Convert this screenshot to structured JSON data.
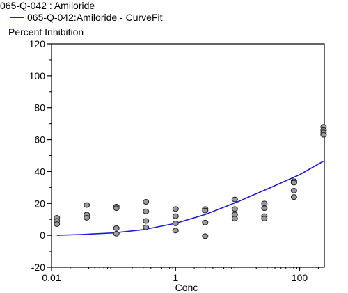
{
  "legend": {
    "title": "065-Q-042  : Amiloride",
    "fit_label": "065-Q-042:Amiloride - CurveFit"
  },
  "colors": {
    "curve": "#1a1adf",
    "point_fill": "#9a9a9a",
    "point_stroke": "#2a2a2a",
    "axis": "#000000"
  },
  "chart_data": {
    "type": "scatter",
    "ylabel": "Percent Inhibition",
    "xlabel": "Conc",
    "xscale": "log",
    "xlim": [
      0.01,
      250
    ],
    "ylim": [
      -20,
      120
    ],
    "x_ticks": [
      0.01,
      1,
      100
    ],
    "x_tick_labels": [
      "0.01",
      "1",
      "100"
    ],
    "y_ticks": [
      -20,
      0,
      20,
      40,
      60,
      80,
      100,
      120
    ],
    "y_tick_labels": [
      "-20",
      "0",
      "20",
      "40",
      "60",
      "80",
      "100",
      "120"
    ],
    "series": [
      {
        "kind": "points",
        "points": [
          {
            "x": 0.0122,
            "y": 11
          },
          {
            "x": 0.0122,
            "y": 9
          },
          {
            "x": 0.0122,
            "y": 7
          },
          {
            "x": 0.037,
            "y": 19
          },
          {
            "x": 0.037,
            "y": 13
          },
          {
            "x": 0.037,
            "y": 11
          },
          {
            "x": 0.111,
            "y": 18
          },
          {
            "x": 0.111,
            "y": 17
          },
          {
            "x": 0.111,
            "y": 4.5
          },
          {
            "x": 0.111,
            "y": 1
          },
          {
            "x": 0.333,
            "y": 21
          },
          {
            "x": 0.333,
            "y": 15
          },
          {
            "x": 0.333,
            "y": 9
          },
          {
            "x": 0.333,
            "y": 5
          },
          {
            "x": 1,
            "y": 16.5
          },
          {
            "x": 1,
            "y": 12
          },
          {
            "x": 1,
            "y": 7.5
          },
          {
            "x": 1,
            "y": 3
          },
          {
            "x": 3,
            "y": 16.5
          },
          {
            "x": 3,
            "y": 15.5
          },
          {
            "x": 3,
            "y": 8
          },
          {
            "x": 3,
            "y": -0.5
          },
          {
            "x": 9,
            "y": 22.5
          },
          {
            "x": 9,
            "y": 16.5
          },
          {
            "x": 9,
            "y": 13
          },
          {
            "x": 9,
            "y": 10.5
          },
          {
            "x": 27,
            "y": 20
          },
          {
            "x": 27,
            "y": 17
          },
          {
            "x": 27,
            "y": 12
          },
          {
            "x": 27,
            "y": 10.5
          },
          {
            "x": 81,
            "y": 34
          },
          {
            "x": 81,
            "y": 33
          },
          {
            "x": 81,
            "y": 28
          },
          {
            "x": 81,
            "y": 24
          },
          {
            "x": 243,
            "y": 68
          },
          {
            "x": 243,
            "y": 66
          },
          {
            "x": 243,
            "y": 64.5
          },
          {
            "x": 243,
            "y": 63
          }
        ]
      },
      {
        "kind": "curve",
        "points": [
          {
            "x": 0.0122,
            "y": 0
          },
          {
            "x": 0.03,
            "y": 0.5
          },
          {
            "x": 0.1,
            "y": 1.5
          },
          {
            "x": 0.3,
            "y": 3.5
          },
          {
            "x": 1,
            "y": 7.5
          },
          {
            "x": 3,
            "y": 13
          },
          {
            "x": 10,
            "y": 21
          },
          {
            "x": 30,
            "y": 29
          },
          {
            "x": 100,
            "y": 38
          },
          {
            "x": 243,
            "y": 46.5
          }
        ]
      }
    ]
  }
}
